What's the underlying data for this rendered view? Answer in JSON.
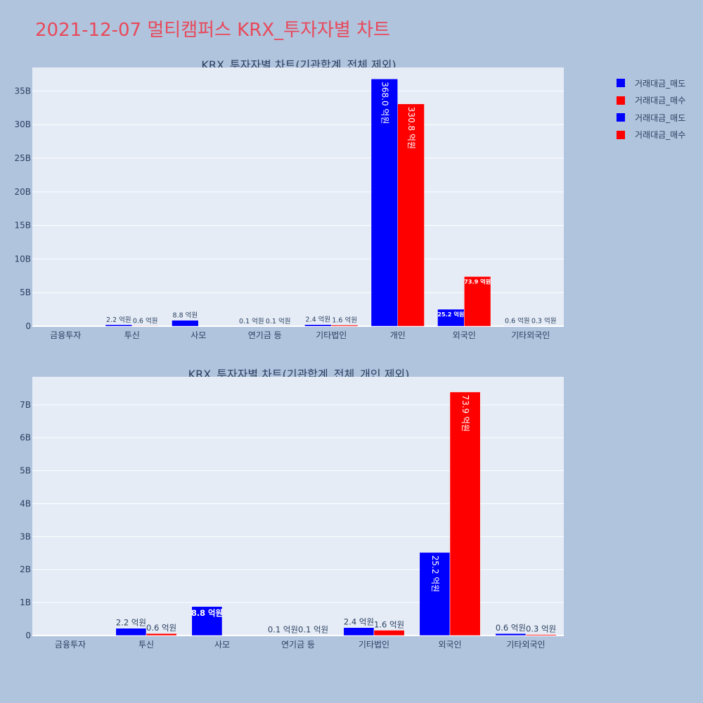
{
  "title": "2021-12-07 멀티캠퍼스 KRX_투자자별 차트",
  "legend": [
    {
      "label": "거래대금_매도",
      "color": "#0000ff"
    },
    {
      "label": "거래대금_매수",
      "color": "#ff0000"
    },
    {
      "label": "거래대금_매도",
      "color": "#0000ff"
    },
    {
      "label": "거래대금_매수",
      "color": "#ff0000"
    }
  ],
  "chart_data": [
    {
      "type": "bar",
      "title": "KRX_투자자별 차트(기관합계_전체 제외)",
      "categories": [
        "금융투자",
        "투신",
        "사모",
        "연기금 등",
        "기타법인",
        "개인",
        "외국인",
        "기타외국인"
      ],
      "ylim": [
        0,
        38500000000
      ],
      "yticks": [
        0,
        5000000000,
        10000000000,
        15000000000,
        20000000000,
        25000000000,
        30000000000,
        35000000000
      ],
      "ytick_labels": [
        "0",
        "5B",
        "10B",
        "15B",
        "20B",
        "25B",
        "30B",
        "35B"
      ],
      "series": [
        {
          "name": "거래대금_매도",
          "color": "#0000ff",
          "values": [
            0,
            220000000,
            880000000,
            10000000,
            240000000,
            36800000000,
            2520000000,
            60000000
          ],
          "labels": [
            "",
            "2.2 억원",
            "8.8 억원",
            "0.1 억원",
            "2.4 억원",
            "368.0 억원",
            "25.2 억원",
            "0.6 억원"
          ]
        },
        {
          "name": "거래대금_매수",
          "color": "#ff0000",
          "values": [
            0,
            60000000,
            0,
            10000000,
            160000000,
            33080000000,
            7390000000,
            30000000
          ],
          "labels": [
            "",
            "0.6 억원",
            "",
            "0.1 억원",
            "1.6 억원",
            "330.8 억원",
            "73.9 억원",
            "0.3 억원"
          ]
        }
      ]
    },
    {
      "type": "bar",
      "title": "KRX_투자자별 차트(기관합계_전체_개인 제외)",
      "categories": [
        "금융투자",
        "투신",
        "사모",
        "연기금 등",
        "기타법인",
        "외국인",
        "기타외국인"
      ],
      "ylim": [
        0,
        7850000000
      ],
      "yticks": [
        0,
        1000000000,
        2000000000,
        3000000000,
        4000000000,
        5000000000,
        6000000000,
        7000000000
      ],
      "ytick_labels": [
        "0",
        "1B",
        "2B",
        "3B",
        "4B",
        "5B",
        "6B",
        "7B"
      ],
      "series": [
        {
          "name": "거래대금_매도",
          "color": "#0000ff",
          "values": [
            0,
            220000000,
            880000000,
            10000000,
            240000000,
            2520000000,
            60000000
          ],
          "labels": [
            "",
            "2.2 억원",
            "8.8 억원",
            "0.1 억원",
            "2.4 억원",
            "25.2 억원",
            "0.6 억원"
          ]
        },
        {
          "name": "거래대금_매수",
          "color": "#ff0000",
          "values": [
            0,
            60000000,
            0,
            10000000,
            160000000,
            7390000000,
            30000000
          ],
          "labels": [
            "",
            "0.6 억원",
            "",
            "0.1 억원",
            "1.6 억원",
            "73.9 억원",
            "0.3 억원"
          ]
        }
      ]
    }
  ]
}
